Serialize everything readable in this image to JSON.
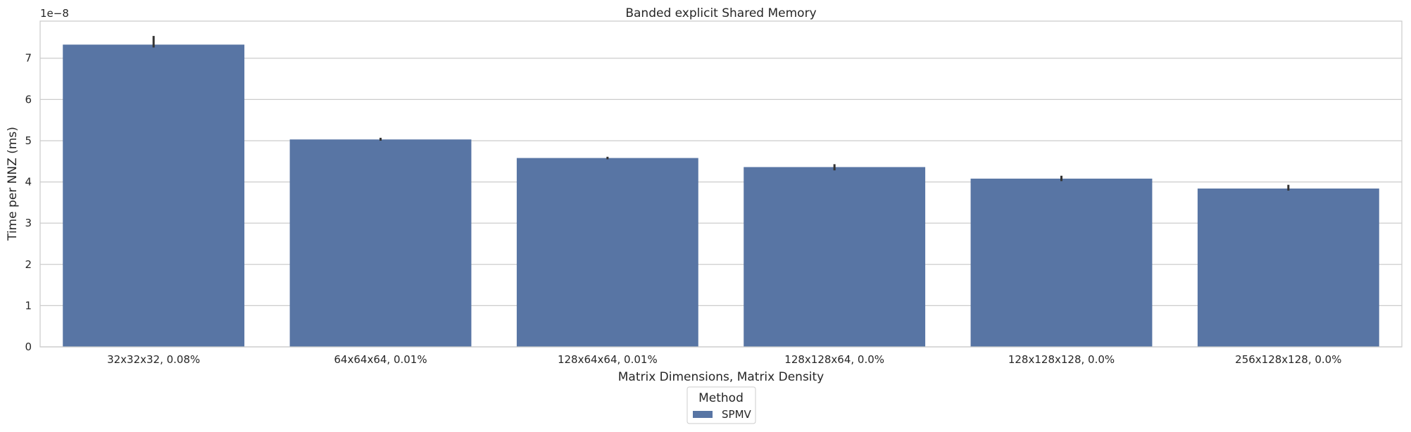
{
  "chart_data": {
    "type": "bar",
    "title": "Banded explicit Shared Memory",
    "xlabel": "Matrix Dimensions, Matrix Density",
    "ylabel": "Time per NNZ (ms)",
    "y_offset_label": "1e−8",
    "categories": [
      "32x32x32, 0.08%",
      "64x64x64, 0.01%",
      "128x64x64, 0.01%",
      "128x128x64, 0.0%",
      "128x128x128, 0.0%",
      "256x128x128, 0.0%"
    ],
    "series": [
      {
        "name": "SPMV",
        "values": [
          7.33,
          5.03,
          4.58,
          4.36,
          4.08,
          3.84
        ],
        "error_low": [
          7.26,
          5.0,
          4.55,
          4.28,
          4.02,
          3.79
        ],
        "error_high": [
          7.54,
          5.07,
          4.61,
          4.43,
          4.15,
          3.93
        ]
      }
    ],
    "ylim": [
      0,
      7.9
    ],
    "yticks": [
      "0",
      "1",
      "2",
      "3",
      "4",
      "5",
      "6",
      "7"
    ],
    "grid": "horizontal",
    "legend": {
      "title": "Method",
      "placement": "bottom-center"
    },
    "colors": {
      "bar": "#5875a4",
      "errorbar": "#333333",
      "grid": "#cccccc",
      "spine": "#cccccc"
    }
  }
}
